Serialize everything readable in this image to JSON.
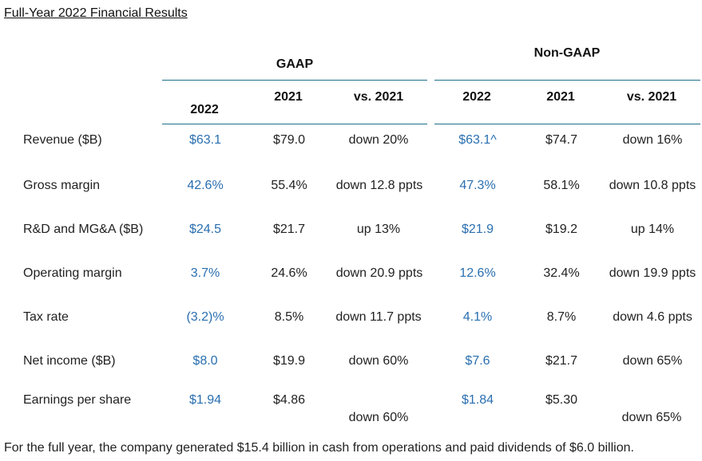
{
  "title": "Full-Year 2022 Financial Results",
  "groups": {
    "gaap": "GAAP",
    "non_gaap": "Non-GAAP"
  },
  "columns": {
    "gaap_2022": "2022",
    "gaap_2021": "2021",
    "gaap_vs": "vs. 2021",
    "ng_2022": "2022",
    "ng_2021": "2021",
    "ng_vs": "vs. 2021"
  },
  "rows": [
    {
      "label": "Revenue ($B)",
      "gaap_2022": "$63.1",
      "gaap_2021": "$79.0",
      "gaap_vs": "down 20%",
      "ng_2022": "$63.1^",
      "ng_2021": "$74.7",
      "ng_vs": "down 16%"
    },
    {
      "label": "Gross margin",
      "gaap_2022": "42.6%",
      "gaap_2021": "55.4%",
      "gaap_vs": "down 12.8 ppts",
      "ng_2022": "47.3%",
      "ng_2021": "58.1%",
      "ng_vs": "down 10.8 ppts"
    },
    {
      "label": "R&D and MG&A ($B)",
      "gaap_2022": "$24.5",
      "gaap_2021": "$21.7",
      "gaap_vs": "up 13%",
      "ng_2022": "$21.9",
      "ng_2021": "$19.2",
      "ng_vs": "up 14%"
    },
    {
      "label": "Operating margin",
      "gaap_2022": "3.7%",
      "gaap_2021": "24.6%",
      "gaap_vs": "down 20.9 ppts",
      "ng_2022": "12.6%",
      "ng_2021": "32.4%",
      "ng_vs": "down 19.9 ppts"
    },
    {
      "label": "Tax rate",
      "gaap_2022": "(3.2)%",
      "gaap_2021": "8.5%",
      "gaap_vs": "down 11.7 ppts",
      "ng_2022": "4.1%",
      "ng_2021": "8.7%",
      "ng_vs": "down 4.6 ppts"
    },
    {
      "label": "Net income ($B)",
      "gaap_2022": "$8.0",
      "gaap_2021": "$19.9",
      "gaap_vs": "down 60%",
      "ng_2022": "$7.6",
      "ng_2021": "$21.7",
      "ng_vs": "down 65%"
    },
    {
      "label": "Earnings per share",
      "gaap_2022": "$1.94",
      "gaap_2021": "$4.86",
      "gaap_vs": "down 60%",
      "ng_2022": "$1.84",
      "ng_2021": "$5.30",
      "ng_vs": "down 65%"
    }
  ],
  "footer": "For the full year, the company generated $15.4 billion in cash from operations and paid dividends of $6.0 billion.",
  "colors": {
    "current_year_value": "#2a6fb0",
    "rule": "#1f6f8b",
    "text": "#222222"
  }
}
